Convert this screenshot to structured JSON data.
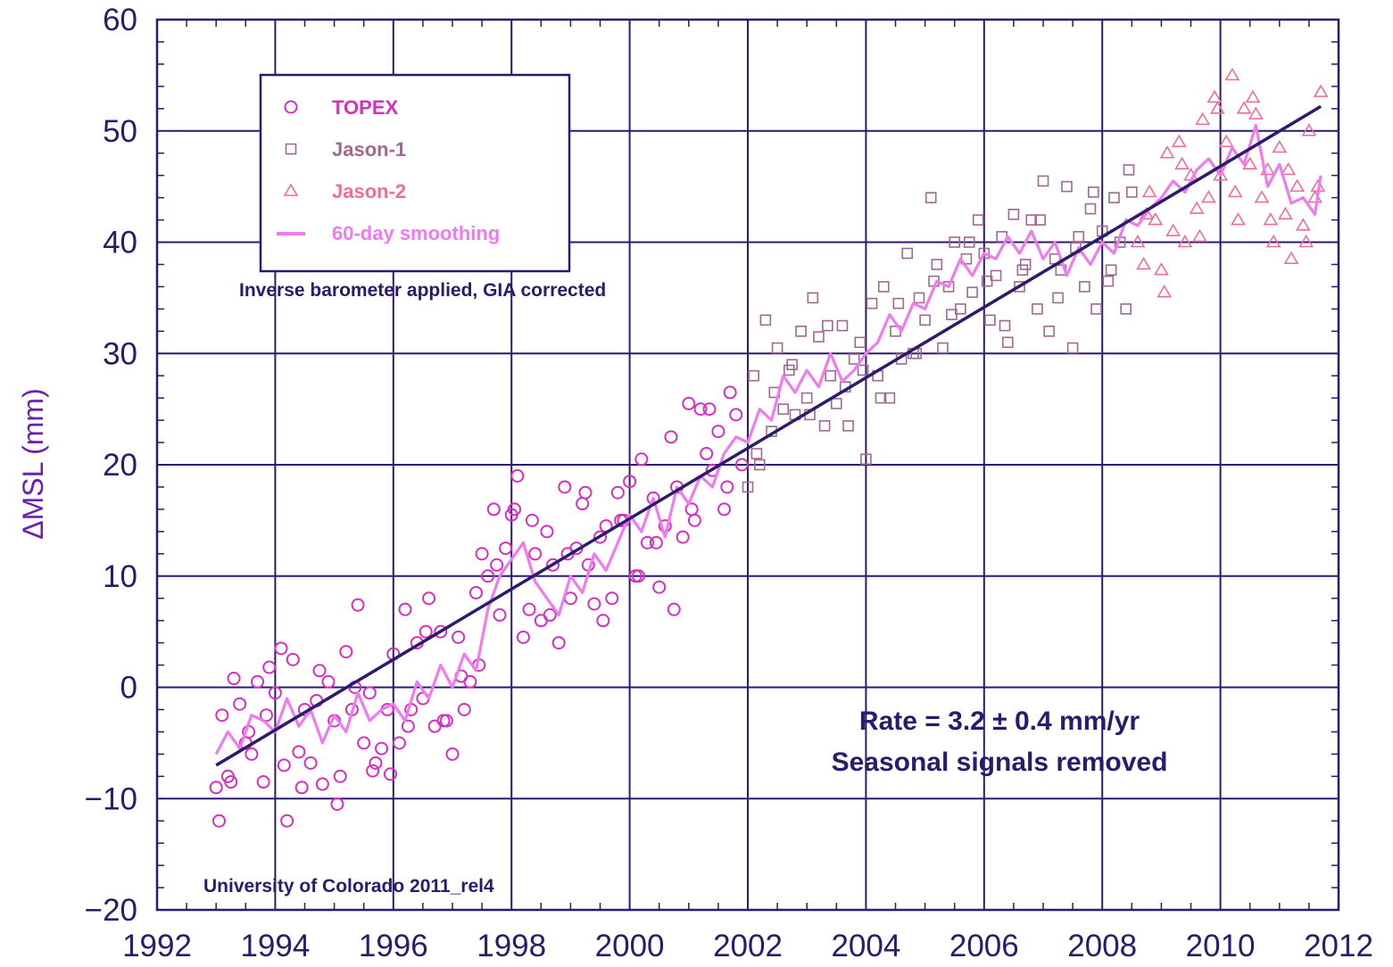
{
  "chart_data": {
    "type": "scatter",
    "xlabel": "",
    "ylabel": "ΔMSL (mm)",
    "xlim": [
      1992,
      2012
    ],
    "ylim": [
      -20,
      60
    ],
    "xticks": [
      "1992",
      "1994",
      "1996",
      "1998",
      "2000",
      "2002",
      "2004",
      "2006",
      "2008",
      "2010",
      "2012"
    ],
    "yticks": [
      "−20",
      "−10",
      "0",
      "10",
      "20",
      "30",
      "40",
      "50",
      "60"
    ],
    "grid": true,
    "legend_position": "top-left",
    "legend": [
      {
        "label": "TOPEX",
        "marker": "circle",
        "color": "#d62fbf"
      },
      {
        "label": "Jason-1",
        "marker": "square",
        "color": "#a0698f"
      },
      {
        "label": "Jason-2",
        "marker": "triangle",
        "color": "#f06e96"
      },
      {
        "label": "60-day smoothing",
        "marker": "line",
        "color": "#f07af0"
      }
    ],
    "annotations": {
      "ib_note": "Inverse barometer applied, GIA corrected",
      "rate": "Rate = 3.2 ± 0.4 mm/yr",
      "seasonal": "Seasonal signals removed",
      "source": "University of Colorado 2011_rel4"
    },
    "trend_line": {
      "x": [
        1993.0,
        2011.7
      ],
      "y": [
        -7.0,
        52.2
      ],
      "color": "#2b1a6e"
    },
    "series": [
      {
        "name": "TOPEX",
        "marker": "circle",
        "color": "#d62fbf",
        "x": [
          1993.0,
          1993.1,
          1993.2,
          1993.3,
          1993.4,
          1993.5,
          1993.6,
          1993.7,
          1993.8,
          1993.9,
          1994.0,
          1994.1,
          1994.2,
          1994.3,
          1994.4,
          1994.5,
          1994.6,
          1994.7,
          1994.8,
          1994.9,
          1995.0,
          1995.1,
          1995.2,
          1995.3,
          1995.4,
          1995.5,
          1995.6,
          1995.7,
          1995.8,
          1995.9,
          1996.0,
          1996.1,
          1996.2,
          1996.3,
          1996.4,
          1996.5,
          1996.6,
          1996.7,
          1996.8,
          1996.9,
          1997.0,
          1997.1,
          1997.2,
          1997.3,
          1997.4,
          1997.5,
          1997.6,
          1997.7,
          1997.8,
          1997.9,
          1998.0,
          1998.1,
          1998.2,
          1998.3,
          1998.4,
          1998.5,
          1998.6,
          1998.7,
          1998.8,
          1998.9,
          1999.0,
          1999.1,
          1999.2,
          1999.3,
          1999.4,
          1999.5,
          1999.6,
          1999.7,
          1999.8,
          1999.9,
          2000.0,
          2000.1,
          2000.2,
          2000.3,
          2000.4,
          2000.5,
          2000.6,
          2000.7,
          2000.8,
          2000.9,
          2001.0,
          2001.1,
          2001.2,
          2001.3,
          2001.4,
          2001.5,
          2001.6,
          2001.7,
          2001.8,
          2001.9,
          1993.05,
          1993.25,
          1993.55,
          1993.85,
          1994.15,
          1994.45,
          1994.75,
          1995.05,
          1995.35,
          1995.65,
          1995.95,
          1996.25,
          1996.55,
          1996.85,
          1997.15,
          1997.45,
          1997.75,
          1998.05,
          1998.35,
          1998.65,
          1998.95,
          1999.25,
          1999.55,
          1999.85,
          2000.15,
          2000.45,
          2000.75,
          2001.05,
          2001.35,
          2001.65
        ],
        "y": [
          -9.0,
          -2.5,
          -8.0,
          0.8,
          -1.5,
          -5.0,
          -6.0,
          0.5,
          -8.5,
          1.8,
          -0.5,
          3.5,
          -12.0,
          2.5,
          -5.8,
          -2.0,
          -6.8,
          -1.2,
          -8.7,
          0.5,
          -3.0,
          -8.0,
          3.2,
          -2.0,
          7.4,
          -5.0,
          -0.5,
          -6.8,
          -5.5,
          -2.0,
          3.0,
          -5.0,
          7.0,
          -2.0,
          4.0,
          -1.0,
          8.0,
          -3.5,
          5.0,
          -3.0,
          -6.0,
          4.5,
          -2.0,
          0.5,
          8.5,
          12.0,
          10.0,
          16.0,
          6.5,
          12.5,
          15.5,
          19.0,
          4.5,
          7.0,
          12.0,
          6.0,
          14.0,
          11.0,
          4.0,
          18.0,
          8.0,
          12.5,
          16.5,
          11.0,
          7.5,
          13.5,
          14.5,
          8.0,
          17.5,
          15.0,
          18.5,
          10.0,
          20.5,
          13.0,
          17.0,
          9.0,
          14.5,
          22.5,
          18.0,
          13.5,
          25.5,
          15.0,
          25.0,
          21.0,
          19.5,
          23.0,
          16.0,
          26.5,
          24.5,
          20.0,
          -12.0,
          -8.5,
          -4.0,
          -2.5,
          -7.0,
          -9.0,
          1.5,
          -10.5,
          0.0,
          -7.5,
          -7.8,
          -3.5,
          5.0,
          -3.0,
          1.0,
          2.0,
          11.0,
          16.0,
          15.0,
          6.5,
          12.0,
          17.5,
          6.0,
          15.0,
          10.0,
          13.0,
          7.0,
          16.0,
          25.0,
          18.0
        ]
      },
      {
        "name": "Jason-1",
        "marker": "square",
        "color": "#a0698f",
        "x": [
          2002.0,
          2002.1,
          2002.2,
          2002.3,
          2002.4,
          2002.5,
          2002.6,
          2002.7,
          2002.8,
          2002.9,
          2003.0,
          2003.1,
          2003.2,
          2003.3,
          2003.4,
          2003.5,
          2003.6,
          2003.7,
          2003.8,
          2003.9,
          2004.0,
          2004.1,
          2004.2,
          2004.3,
          2004.4,
          2004.5,
          2004.6,
          2004.7,
          2004.8,
          2004.9,
          2005.0,
          2005.1,
          2005.2,
          2005.3,
          2005.4,
          2005.5,
          2005.6,
          2005.7,
          2005.8,
          2005.9,
          2006.0,
          2006.1,
          2006.2,
          2006.3,
          2006.4,
          2006.5,
          2006.6,
          2006.7,
          2006.8,
          2006.9,
          2007.0,
          2007.1,
          2007.2,
          2007.3,
          2007.4,
          2007.5,
          2007.6,
          2007.7,
          2007.8,
          2007.9,
          2008.0,
          2008.1,
          2008.2,
          2008.3,
          2008.4,
          2008.5,
          2002.15,
          2002.45,
          2002.75,
          2003.05,
          2003.35,
          2003.65,
          2003.95,
          2004.25,
          2004.55,
          2004.85,
          2005.15,
          2005.45,
          2005.75,
          2006.05,
          2006.35,
          2006.65,
          2006.95,
          2007.25,
          2007.55,
          2007.85,
          2008.15,
          2008.45
        ],
        "y": [
          18.0,
          28.0,
          20.0,
          33.0,
          23.0,
          30.5,
          25.0,
          28.5,
          24.5,
          32.0,
          26.0,
          35.0,
          31.5,
          23.5,
          28.0,
          25.5,
          32.5,
          23.5,
          29.5,
          31.0,
          20.5,
          34.5,
          28.0,
          36.0,
          26.0,
          32.0,
          29.5,
          39.0,
          30.0,
          35.0,
          33.0,
          44.0,
          38.0,
          30.5,
          36.0,
          40.0,
          34.0,
          38.5,
          35.5,
          42.0,
          39.0,
          33.0,
          37.0,
          40.5,
          31.0,
          42.5,
          36.0,
          38.0,
          42.0,
          34.0,
          45.5,
          32.0,
          38.5,
          37.5,
          45.0,
          30.5,
          40.5,
          36.0,
          43.0,
          34.0,
          41.0,
          36.5,
          44.0,
          40.0,
          34.0,
          44.5,
          21.0,
          26.5,
          29.0,
          24.5,
          32.5,
          27.0,
          28.5,
          26.0,
          34.5,
          30.0,
          36.5,
          33.5,
          40.0,
          36.5,
          32.5,
          37.5,
          42.0,
          35.0,
          39.5,
          44.5,
          37.5,
          46.5
        ]
      },
      {
        "name": "Jason-2",
        "marker": "triangle",
        "color": "#f06e96",
        "x": [
          2008.6,
          2008.7,
          2008.8,
          2008.9,
          2009.0,
          2009.1,
          2009.2,
          2009.3,
          2009.4,
          2009.5,
          2009.6,
          2009.7,
          2009.8,
          2009.9,
          2010.0,
          2010.1,
          2010.2,
          2010.3,
          2010.4,
          2010.5,
          2010.6,
          2010.7,
          2010.8,
          2010.9,
          2011.0,
          2011.1,
          2011.2,
          2011.3,
          2011.4,
          2011.5,
          2011.6,
          2011.7,
          2008.75,
          2009.05,
          2009.35,
          2009.65,
          2009.95,
          2010.25,
          2010.55,
          2010.85,
          2011.15,
          2011.45,
          2011.65
        ],
        "y": [
          40.0,
          38.0,
          44.5,
          42.0,
          37.5,
          48.0,
          41.0,
          49.0,
          40.0,
          46.0,
          43.0,
          51.0,
          44.0,
          53.0,
          46.0,
          49.0,
          55.0,
          42.0,
          52.0,
          47.0,
          51.5,
          44.0,
          46.5,
          40.0,
          48.5,
          42.5,
          38.5,
          45.0,
          41.5,
          50.0,
          44.0,
          53.5,
          42.5,
          35.5,
          47.0,
          40.5,
          52.0,
          44.5,
          53.0,
          42.0,
          46.5,
          40.0,
          45.0
        ]
      },
      {
        "name": "60-day smoothing",
        "marker": "line",
        "color": "#f07af0",
        "x": [
          1993.0,
          1993.2,
          1993.4,
          1993.6,
          1993.8,
          1994.0,
          1994.2,
          1994.4,
          1994.6,
          1994.8,
          1995.0,
          1995.2,
          1995.4,
          1995.6,
          1995.8,
          1996.0,
          1996.2,
          1996.4,
          1996.6,
          1996.8,
          1997.0,
          1997.2,
          1997.4,
          1997.6,
          1997.8,
          1998.0,
          1998.2,
          1998.4,
          1998.6,
          1998.8,
          1999.0,
          1999.2,
          1999.4,
          1999.6,
          1999.8,
          2000.0,
          2000.2,
          2000.4,
          2000.6,
          2000.8,
          2001.0,
          2001.2,
          2001.4,
          2001.6,
          2001.8,
          2002.0,
          2002.2,
          2002.4,
          2002.6,
          2002.8,
          2003.0,
          2003.2,
          2003.4,
          2003.6,
          2003.8,
          2004.0,
          2004.2,
          2004.4,
          2004.6,
          2004.8,
          2005.0,
          2005.2,
          2005.4,
          2005.6,
          2005.8,
          2006.0,
          2006.2,
          2006.4,
          2006.6,
          2006.8,
          2007.0,
          2007.2,
          2007.4,
          2007.6,
          2007.8,
          2008.0,
          2008.2,
          2008.4,
          2008.6,
          2008.8,
          2009.0,
          2009.2,
          2009.4,
          2009.6,
          2009.8,
          2010.0,
          2010.2,
          2010.4,
          2010.6,
          2010.8,
          2011.0,
          2011.2,
          2011.4,
          2011.6,
          2011.7
        ],
        "y": [
          -6.0,
          -4.0,
          -5.5,
          -2.5,
          -3.0,
          -4.0,
          -1.0,
          -3.5,
          -2.0,
          -5.0,
          -2.5,
          -4.0,
          -0.5,
          -3.0,
          -2.0,
          -1.5,
          -3.0,
          0.5,
          -1.0,
          2.0,
          0.0,
          3.0,
          1.5,
          7.0,
          10.0,
          11.5,
          13.0,
          9.5,
          8.0,
          6.5,
          10.0,
          8.5,
          12.0,
          10.5,
          13.0,
          15.5,
          14.0,
          17.0,
          13.5,
          18.0,
          16.5,
          19.0,
          18.0,
          21.0,
          22.5,
          22.0,
          25.0,
          24.0,
          28.0,
          26.5,
          28.5,
          27.0,
          30.0,
          27.5,
          28.5,
          30.0,
          31.0,
          33.5,
          32.0,
          34.5,
          34.0,
          36.5,
          36.0,
          38.5,
          37.0,
          39.0,
          38.5,
          40.5,
          39.0,
          41.0,
          38.5,
          40.0,
          37.0,
          39.5,
          38.0,
          40.0,
          39.0,
          42.0,
          41.5,
          43.0,
          44.0,
          45.5,
          44.5,
          46.5,
          47.5,
          46.0,
          48.5,
          47.0,
          50.5,
          45.0,
          47.0,
          43.5,
          44.0,
          42.5,
          46.0
        ]
      }
    ]
  }
}
